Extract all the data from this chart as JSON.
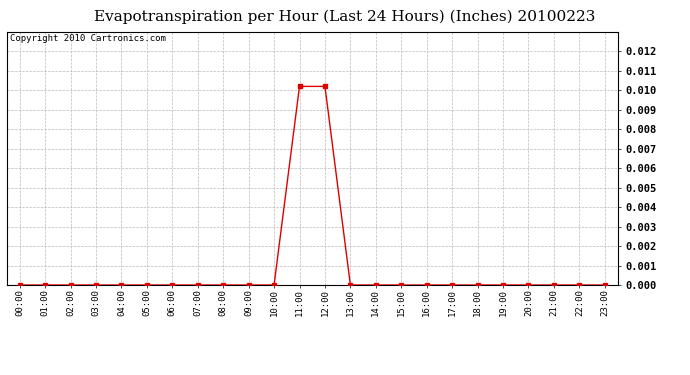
{
  "title": "Evapotranspiration per Hour (Last 24 Hours) (Inches) 20100223",
  "copyright": "Copyright 2010 Cartronics.com",
  "hours": [
    "00:00",
    "01:00",
    "02:00",
    "03:00",
    "04:00",
    "05:00",
    "06:00",
    "07:00",
    "08:00",
    "09:00",
    "10:00",
    "11:00",
    "12:00",
    "13:00",
    "14:00",
    "15:00",
    "16:00",
    "17:00",
    "18:00",
    "19:00",
    "20:00",
    "21:00",
    "22:00",
    "23:00"
  ],
  "values": [
    0.0,
    0.0,
    0.0,
    0.0,
    0.0,
    0.0,
    0.0,
    0.0,
    0.0,
    0.0,
    0.0,
    0.0102,
    0.0102,
    0.0,
    0.0,
    0.0,
    0.0,
    0.0,
    0.0,
    0.0,
    0.0,
    0.0,
    0.0,
    0.0
  ],
  "line_color": "#dd0000",
  "marker": "s",
  "marker_size": 2.5,
  "background_color": "#ffffff",
  "grid_color": "#bbbbbb",
  "ylim": [
    0,
    0.013
  ],
  "yticks": [
    0.0,
    0.001,
    0.002,
    0.003,
    0.004,
    0.005,
    0.006,
    0.007,
    0.008,
    0.009,
    0.01,
    0.011,
    0.012
  ],
  "title_fontsize": 11,
  "copyright_fontsize": 6.5,
  "tick_fontsize": 6.5,
  "y_tick_fontsize": 7.5
}
